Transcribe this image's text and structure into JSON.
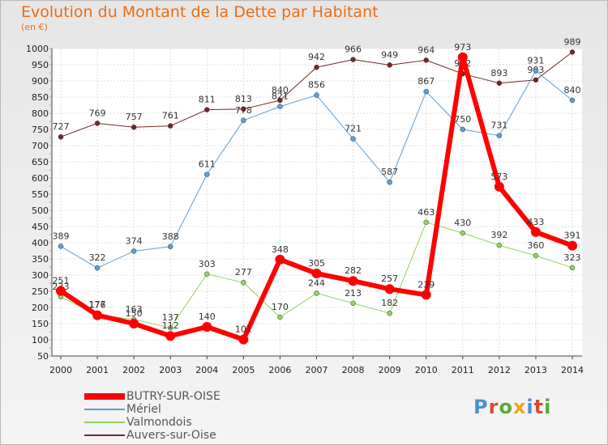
{
  "header": {
    "title": "Evolution du Montant de la Dette par Habitant",
    "subtitle": "(en €)"
  },
  "brand": {
    "text": "Proxiti",
    "colors": [
      "#4a8fd9",
      "#d94a2f",
      "#5aa83a",
      "#f2a31b",
      "#4a8fd9",
      "#d94a2f",
      "#5aa83a"
    ]
  },
  "chart_data": {
    "type": "line",
    "x": [
      "2000",
      "2001",
      "2002",
      "2003",
      "2004",
      "2005",
      "2006",
      "2007",
      "2008",
      "2009",
      "2010",
      "2011",
      "2012",
      "2013",
      "2014"
    ],
    "ylim": [
      50,
      1000
    ],
    "yticks": [
      "50",
      "100",
      "150",
      "200",
      "250",
      "300",
      "350",
      "400",
      "450",
      "500",
      "550",
      "600",
      "650",
      "700",
      "750",
      "800",
      "850",
      "900",
      "950",
      "1000"
    ],
    "grid": true,
    "legend_position": "bottom-left",
    "series": [
      {
        "name": "Auvers-sur-Oise",
        "color": "#722828",
        "width": 1,
        "values": [
          727,
          769,
          757,
          761,
          811,
          813,
          840,
          942,
          966,
          949,
          964,
          922,
          893,
          903,
          989
        ],
        "labels": [
          "727",
          "769",
          "757",
          "761",
          "811",
          "813",
          "840",
          "942",
          "966",
          "949",
          "964",
          "922",
          "893",
          "903",
          "989"
        ]
      },
      {
        "name": "Mériel",
        "color": "#5b9fd6",
        "width": 1,
        "values": [
          389,
          322,
          374,
          388,
          611,
          778,
          821,
          856,
          721,
          587,
          867,
          750,
          731,
          931,
          840
        ],
        "labels": [
          "389",
          "322",
          "374",
          "388",
          "611",
          "778",
          "821",
          "856",
          "721",
          "587",
          "867",
          "750",
          "731",
          "931",
          "840"
        ]
      },
      {
        "name": "Valmondois",
        "color": "#8fd45f",
        "width": 1,
        "values": [
          233,
          177,
          163,
          137,
          303,
          277,
          170,
          244,
          213,
          182,
          463,
          430,
          392,
          360,
          323
        ],
        "labels": [
          "233",
          "177",
          "163",
          "137",
          "303",
          "277",
          "170",
          "244",
          "213",
          "182",
          "463",
          "430",
          "392",
          "360",
          "323"
        ]
      },
      {
        "name": "BUTRY-SUR-OISE",
        "color": "#ff0000",
        "width": 6,
        "values": [
          251,
          176,
          150,
          112,
          140,
          101,
          348,
          305,
          282,
          257,
          239,
          973,
          573,
          433,
          391
        ],
        "labels": [
          "251",
          "176",
          "150",
          "112",
          "140",
          "101",
          "348",
          "305",
          "282",
          "257",
          "239",
          "973",
          "573",
          "433",
          "391"
        ]
      }
    ]
  }
}
